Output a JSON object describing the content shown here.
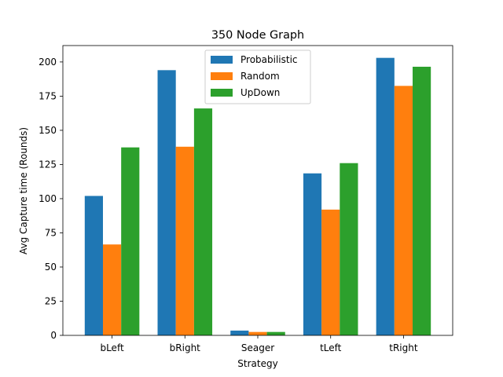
{
  "chart_data": {
    "type": "bar",
    "title": "350 Node Graph",
    "xlabel": "Strategy",
    "ylabel": "Avg Capture time (Rounds)",
    "categories": [
      "bLeft",
      "bRight",
      "Seager",
      "tLeft",
      "tRight"
    ],
    "series": [
      {
        "name": "Probabilistic",
        "color": "#1f77b4",
        "values": [
          102,
          194,
          3.5,
          118.5,
          203
        ]
      },
      {
        "name": "Random",
        "color": "#ff7f0e",
        "values": [
          66.5,
          138,
          2.5,
          92,
          182.5
        ]
      },
      {
        "name": "UpDown",
        "color": "#2ca02c",
        "values": [
          137.5,
          166,
          2.5,
          126,
          196.5
        ]
      }
    ],
    "ylim": [
      0,
      212
    ],
    "yticks": [
      0,
      25,
      50,
      75,
      100,
      125,
      150,
      175,
      200
    ],
    "grid": false,
    "legend_position": "upper center"
  }
}
